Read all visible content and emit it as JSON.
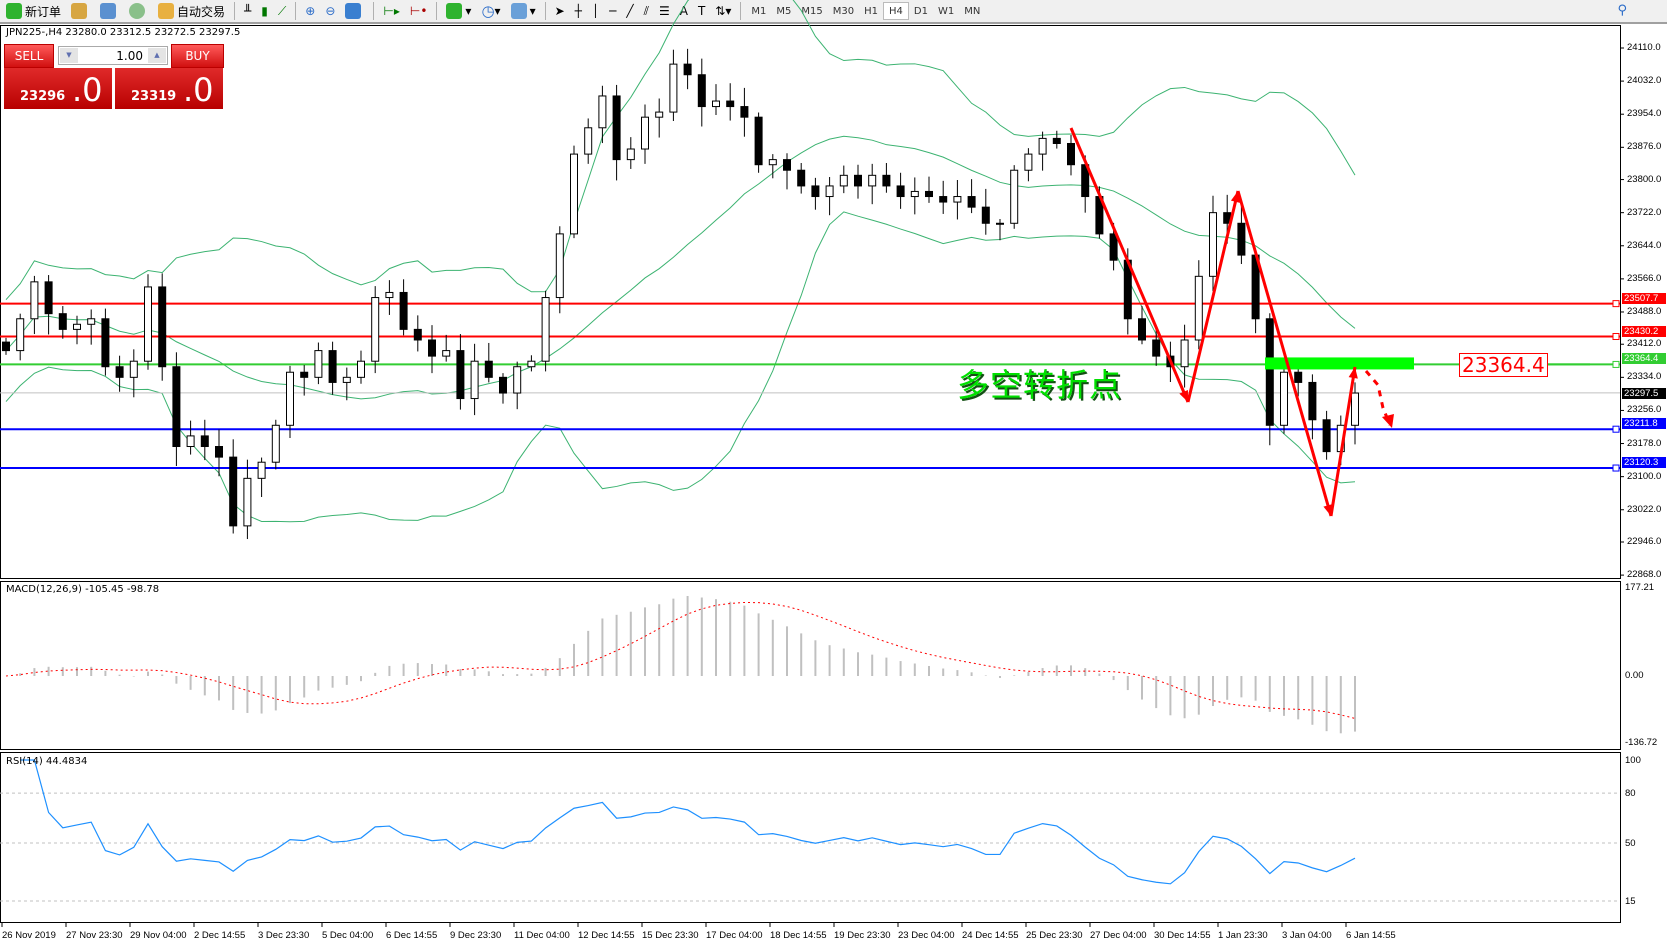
{
  "toolbar": {
    "new_order": "新订单",
    "auto_trading": "自动交易",
    "timeframes": [
      "M1",
      "M5",
      "M15",
      "M30",
      "H1",
      "H4",
      "D1",
      "W1",
      "MN"
    ],
    "active_timeframe": "H4",
    "icons": [
      "new-order-icon",
      "market-watch-icon",
      "navigator-icon",
      "signal-icon",
      "auto-trading-icon",
      "bar-chart-icon",
      "candlestick-icon",
      "line-chart-icon",
      "zoom-in-icon",
      "zoom-out-icon",
      "tile-windows-icon",
      "auto-scroll-icon",
      "chart-shift-icon",
      "indicators-icon",
      "periods-icon",
      "templates-icon",
      "cursor-icon",
      "crosshair-icon",
      "vertical-line-icon",
      "horizontal-line-icon",
      "trendline-icon",
      "equidistant-channel-icon",
      "fibonacci-icon",
      "text-icon",
      "text-label-icon",
      "arrows-icon"
    ]
  },
  "chart": {
    "symbol_header": "JPN225-,H4  23280.0 23312.5 23272.5 23297.5",
    "closes": [
      23397,
      23472,
      23559,
      23484,
      23447,
      23459,
      23472,
      23359,
      23334,
      23372,
      23547,
      23359,
      23171,
      23196,
      23171,
      23146,
      22984,
      23096,
      23134,
      23221,
      23346,
      23334,
      23397,
      23322,
      23334,
      23372,
      23522,
      23534,
      23447,
      23422,
      23384,
      23397,
      23284,
      23372,
      23334,
      23297,
      23359,
      23372,
      23522,
      23672,
      23860,
      23922,
      23997,
      23847,
      23872,
      23947,
      23959,
      24072,
      24047,
      23972,
      23985,
      23972,
      23947,
      23835,
      23847,
      23822,
      23785,
      23760,
      23785,
      23810,
      23785,
      23810,
      23785,
      23760,
      23772,
      23760,
      23747,
      23760,
      23735,
      23697,
      23697,
      23822,
      23860,
      23897,
      23885,
      23835,
      23760,
      23672,
      23610,
      23472,
      23422,
      23384,
      23359,
      23422,
      23572,
      23722,
      23697,
      23622,
      23472,
      23221,
      23346,
      23322,
      23234,
      23159,
      23221,
      23297
    ],
    "price_axis": [
      "24110.0",
      "24032.0",
      "23954.0",
      "23876.0",
      "23800.0",
      "23722.0",
      "23644.0",
      "23566.0",
      "23488.0",
      "23412.0",
      "23334.0",
      "23256.0",
      "23178.0",
      "23100.0",
      "23022.0",
      "22946.0",
      "22868.0"
    ],
    "time_axis": [
      "26 Nov 2019",
      "27 Nov 23:30",
      "29 Nov 04:00",
      "2 Dec 14:55",
      "3 Dec 23:30",
      "5 Dec 04:00",
      "6 Dec 14:55",
      "9 Dec 23:30",
      "11 Dec 04:00",
      "12 Dec 14:55",
      "15 Dec 23:30",
      "17 Dec 04:00",
      "18 Dec 14:55",
      "19 Dec 23:30",
      "23 Dec 04:00",
      "24 Dec 14:55",
      "25 Dec 23:30",
      "27 Dec 04:00",
      "30 Dec 14:55",
      "1 Jan 23:30",
      "3 Jan 04:00",
      "6 Jan 14:55"
    ],
    "levels": [
      {
        "price": "23507.7",
        "color": "#ff0000"
      },
      {
        "price": "23430.2",
        "color": "#ff0000"
      },
      {
        "price": "23364.4",
        "color": "#32cd32"
      },
      {
        "price": "23211.8",
        "color": "#0000ff"
      },
      {
        "price": "23120.3",
        "color": "#0000ff"
      }
    ],
    "current_price": "23297.5",
    "annotation_text": "多空转折点",
    "annotation_label": "23364.4",
    "colors": {
      "bands": "#3cb371",
      "drawing": "#ff0000",
      "zone": "#00ff00"
    }
  },
  "trade_panel": {
    "sell_label": "SELL",
    "buy_label": "BUY",
    "lot": "1.00",
    "sell_price_main": "23296",
    "sell_price_frac": ".0",
    "buy_price_main": "23319",
    "buy_price_frac": ".0"
  },
  "macd": {
    "label": "MACD(12,26,9) -105.45 -98.78",
    "axis": [
      "177.21",
      "0.00",
      "-136.72"
    ]
  },
  "rsi": {
    "label": "RSI(14) 44.4834",
    "axis": [
      "100",
      "80",
      "50",
      "15"
    ],
    "line_color": "#1e90ff"
  }
}
